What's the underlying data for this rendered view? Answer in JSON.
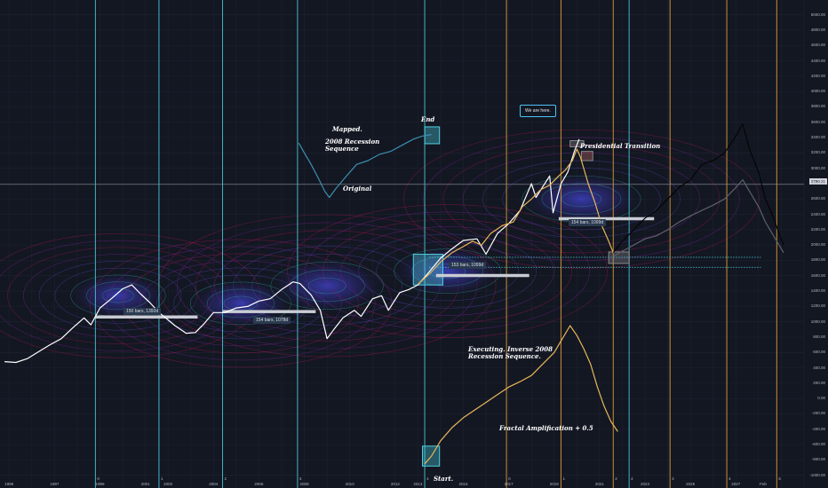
{
  "chart_data": {
    "type": "line",
    "title": "",
    "x_axis_labels": [
      "1995",
      "1997",
      "1999",
      "2001",
      "2002",
      "2004",
      "2006",
      "2008",
      "2010",
      "2012",
      "2013",
      "2015",
      "2017",
      "2019",
      "2021",
      "2023",
      "2025",
      "2027",
      "Feb"
    ],
    "y_axis_labels": [
      "5000.00",
      "4800.00",
      "4600.00",
      "4400.00",
      "4200.00",
      "4000.00",
      "3800.00",
      "3600.00",
      "3400.00",
      "3200.00",
      "3000.00",
      "2800.00",
      "2600.00",
      "2400.00",
      "2200.00",
      "2000.00",
      "1800.00",
      "1600.00",
      "1400.00",
      "1200.00",
      "1000.00",
      "800.00",
      "600.00",
      "400.00",
      "200.00",
      "0.00",
      "-200.00",
      "-400.00",
      "-600.00",
      "-800.00",
      "-1000.00"
    ],
    "current_price": "2790.21",
    "series": [
      {
        "role": "price",
        "color": "#ffffff",
        "points": [
          [
            1994.8,
            480
          ],
          [
            1995.3,
            470
          ],
          [
            1995.8,
            520
          ],
          [
            1996.3,
            610
          ],
          [
            1996.8,
            700
          ],
          [
            1997.3,
            780
          ],
          [
            1997.8,
            920
          ],
          [
            1998.3,
            1050
          ],
          [
            1998.6,
            960
          ],
          [
            1999.0,
            1180
          ],
          [
            1999.5,
            1300
          ],
          [
            2000.0,
            1430
          ],
          [
            2000.4,
            1480
          ],
          [
            2000.8,
            1360
          ],
          [
            2001.2,
            1250
          ],
          [
            2001.6,
            1120
          ],
          [
            2001.9,
            1050
          ],
          [
            2002.3,
            950
          ],
          [
            2002.8,
            850
          ],
          [
            2003.2,
            860
          ],
          [
            2003.6,
            980
          ],
          [
            2004.0,
            1120
          ],
          [
            2004.5,
            1120
          ],
          [
            2005.0,
            1180
          ],
          [
            2005.5,
            1200
          ],
          [
            2006.0,
            1270
          ],
          [
            2006.5,
            1300
          ],
          [
            2007.0,
            1420
          ],
          [
            2007.5,
            1520
          ],
          [
            2007.8,
            1500
          ],
          [
            2008.3,
            1350
          ],
          [
            2008.7,
            1150
          ],
          [
            2009.0,
            780
          ],
          [
            2009.3,
            900
          ],
          [
            2009.7,
            1050
          ],
          [
            2010.2,
            1150
          ],
          [
            2010.5,
            1070
          ],
          [
            2011.0,
            1300
          ],
          [
            2011.4,
            1340
          ],
          [
            2011.7,
            1150
          ],
          [
            2012.2,
            1380
          ],
          [
            2012.6,
            1420
          ],
          [
            2013.0,
            1480
          ],
          [
            2013.5,
            1650
          ],
          [
            2014.0,
            1830
          ],
          [
            2014.5,
            1950
          ],
          [
            2015.0,
            2060
          ],
          [
            2015.6,
            2080
          ],
          [
            2016.0,
            1880
          ],
          [
            2016.5,
            2150
          ],
          [
            2017.0,
            2280
          ],
          [
            2017.5,
            2450
          ],
          [
            2018.0,
            2800
          ],
          [
            2018.2,
            2620
          ],
          [
            2018.8,
            2900
          ],
          [
            2018.95,
            2420
          ],
          [
            2019.3,
            2800
          ],
          [
            2019.6,
            2950
          ],
          [
            2019.9,
            3230
          ],
          [
            2020.1,
            3380
          ]
        ]
      },
      {
        "role": "projection-gold-top",
        "color": "#e8b65a",
        "points": [
          [
            2013.0,
            1490
          ],
          [
            2013.3,
            1570
          ],
          [
            2013.6,
            1650
          ],
          [
            2014.0,
            1780
          ],
          [
            2014.5,
            1900
          ],
          [
            2015.0,
            1980
          ],
          [
            2015.4,
            2050
          ],
          [
            2015.8,
            2000
          ],
          [
            2016.2,
            2150
          ],
          [
            2016.7,
            2250
          ],
          [
            2017.2,
            2300
          ],
          [
            2017.6,
            2500
          ],
          [
            2018.0,
            2600
          ],
          [
            2018.4,
            2720
          ],
          [
            2018.8,
            2780
          ],
          [
            2019.2,
            2900
          ],
          [
            2019.5,
            2980
          ],
          [
            2019.8,
            3100
          ],
          [
            2020.0,
            3250
          ],
          [
            2020.15,
            3150
          ],
          [
            2020.5,
            2800
          ],
          [
            2020.8,
            2550
          ],
          [
            2021.1,
            2250
          ],
          [
            2021.4,
            2050
          ],
          [
            2021.6,
            1900
          ]
        ]
      },
      {
        "role": "projection-black",
        "color": "#050505",
        "points": [
          [
            2021.6,
            1900
          ],
          [
            2022.0,
            2050
          ],
          [
            2022.5,
            2200
          ],
          [
            2023.0,
            2350
          ],
          [
            2023.5,
            2450
          ],
          [
            2024.0,
            2600
          ],
          [
            2024.5,
            2750
          ],
          [
            2025.0,
            2850
          ],
          [
            2025.5,
            3050
          ],
          [
            2026.0,
            3100
          ],
          [
            2026.5,
            3200
          ],
          [
            2027.0,
            3420
          ],
          [
            2027.3,
            3580
          ],
          [
            2027.6,
            3250
          ],
          [
            2028.0,
            2950
          ],
          [
            2028.3,
            2600
          ],
          [
            2028.6,
            2400
          ],
          [
            2028.9,
            2150
          ],
          [
            2029.1,
            2000
          ]
        ]
      },
      {
        "role": "projection-gray",
        "color": "#5d6068",
        "points": [
          [
            2021.6,
            1850
          ],
          [
            2022.0,
            1920
          ],
          [
            2022.5,
            2000
          ],
          [
            2023.0,
            2080
          ],
          [
            2023.5,
            2120
          ],
          [
            2024.0,
            2200
          ],
          [
            2024.5,
            2300
          ],
          [
            2025.0,
            2380
          ],
          [
            2025.5,
            2450
          ],
          [
            2026.0,
            2520
          ],
          [
            2026.5,
            2600
          ],
          [
            2027.0,
            2750
          ],
          [
            2027.3,
            2850
          ],
          [
            2027.6,
            2700
          ],
          [
            2028.0,
            2500
          ],
          [
            2028.3,
            2300
          ],
          [
            2028.6,
            2150
          ],
          [
            2028.9,
            2000
          ],
          [
            2029.1,
            1900
          ]
        ]
      },
      {
        "role": "mapped-2008-sequence",
        "color": "#3d8fb0",
        "points": [
          [
            2007.75,
            3330
          ],
          [
            2008.0,
            3200
          ],
          [
            2008.3,
            3050
          ],
          [
            2008.6,
            2880
          ],
          [
            2008.9,
            2700
          ],
          [
            2009.1,
            2620
          ],
          [
            2009.4,
            2740
          ],
          [
            2009.8,
            2880
          ],
          [
            2010.3,
            3050
          ],
          [
            2010.8,
            3100
          ],
          [
            2011.3,
            3180
          ],
          [
            2011.8,
            3220
          ],
          [
            2012.3,
            3300
          ],
          [
            2012.8,
            3380
          ],
          [
            2013.2,
            3420
          ],
          [
            2013.6,
            3440
          ]
        ]
      },
      {
        "role": "inverse-2008-sequence",
        "color": "#e8b65a",
        "points": [
          [
            2013.3,
            -850
          ],
          [
            2013.6,
            -750
          ],
          [
            2014.0,
            -550
          ],
          [
            2014.5,
            -380
          ],
          [
            2015.0,
            -250
          ],
          [
            2015.5,
            -150
          ],
          [
            2016.0,
            -50
          ],
          [
            2016.5,
            50
          ],
          [
            2017.0,
            150
          ],
          [
            2017.5,
            220
          ],
          [
            2018.0,
            300
          ],
          [
            2018.5,
            450
          ],
          [
            2019.0,
            600
          ],
          [
            2019.4,
            800
          ],
          [
            2019.7,
            950
          ],
          [
            2020.0,
            820
          ],
          [
            2020.3,
            650
          ],
          [
            2020.6,
            450
          ],
          [
            2020.9,
            150
          ],
          [
            2021.2,
            -100
          ],
          [
            2021.5,
            -300
          ],
          [
            2021.8,
            -430
          ]
        ]
      }
    ],
    "vertical_lines": [
      {
        "x": 1998.8,
        "color": "#4dd0e1",
        "label": "0"
      },
      {
        "x": 2001.6,
        "color": "#4dd0e1",
        "label": "1"
      },
      {
        "x": 2004.4,
        "color": "#4dd0e1",
        "label": "2"
      },
      {
        "x": 2007.7,
        "color": "#4dd0e1",
        "label": "3"
      },
      {
        "x": 2013.3,
        "color": "#4dd0e1",
        "label": "4"
      },
      {
        "x": 2016.9,
        "color": "#e8a33a",
        "label": "0"
      },
      {
        "x": 2019.3,
        "color": "#e8a33a",
        "label": "1"
      },
      {
        "x": 2021.6,
        "color": "#e8a33a",
        "label": "2"
      },
      {
        "x": 2022.3,
        "color": "#4dd0e1",
        "label": "4"
      },
      {
        "x": 2024.1,
        "color": "#e8a33a",
        "label": "3"
      },
      {
        "x": 2026.6,
        "color": "#e8a33a",
        "label": "4"
      },
      {
        "x": 2028.8,
        "color": "#e8a33a",
        "label": "5"
      }
    ],
    "annotations": {
      "mapped": "Mapped.",
      "recession_seq": "2008 Recession\nSequence",
      "original": "Original",
      "end": "End",
      "presidential": "Presidential Transition",
      "executing": "Executing. Inverse 2008\nRecession Sequence.",
      "fractal": "Fractal Amplification + 0.5",
      "start": "Start.",
      "we_are_here": "We are here."
    },
    "bar_tags": [
      "150 bars, 1392d",
      "154 bars, 1078d",
      "153 bars, 1099d",
      "154 bars, 1099d"
    ],
    "grid": true
  }
}
